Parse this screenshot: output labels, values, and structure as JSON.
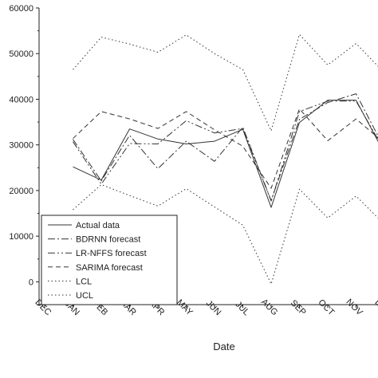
{
  "chart_data": {
    "type": "line",
    "title": "",
    "xlabel": "Date",
    "ylabel": "",
    "categories": [
      "DEC",
      "JAN",
      "FEB",
      "MAR",
      "APR",
      "MAY",
      "JUN",
      "JUL",
      "AUG",
      "SEP",
      "OCT",
      "NOV",
      "DEC"
    ],
    "ylim": [
      -5000,
      60000
    ],
    "yticks": [
      0,
      10000,
      20000,
      30000,
      40000,
      50000,
      60000
    ],
    "ytick_labels": [
      "0",
      "10000",
      "20000",
      "30000",
      "40000",
      "50000",
      "60000"
    ],
    "grid": false,
    "legend_position": "bottom-left",
    "series": [
      {
        "name": "Actual data",
        "style": "solid",
        "values": [
          null,
          25200,
          22300,
          33500,
          31300,
          30200,
          30800,
          33400,
          16300,
          34900,
          39800,
          39800,
          28200
        ]
      },
      {
        "name": "BDRNN forecast",
        "style": "dashdot",
        "values": [
          null,
          31200,
          22100,
          32100,
          24800,
          30800,
          26400,
          33900,
          17800,
          35600,
          39300,
          41200,
          29300
        ]
      },
      {
        "name": "LR-NFFS forecast",
        "style": "dashdotdot",
        "values": [
          null,
          30700,
          21400,
          30300,
          30200,
          35300,
          32600,
          33600,
          17700,
          37300,
          39600,
          39600,
          28800
        ]
      },
      {
        "name": "SARIMA forecast",
        "style": "dashed",
        "values": [
          null,
          31400,
          37300,
          35700,
          33600,
          37300,
          33300,
          29700,
          20500,
          37900,
          30900,
          35700,
          30400
        ]
      },
      {
        "name": "LCL",
        "style": "dotted",
        "values": [
          null,
          15800,
          21300,
          18900,
          16600,
          20400,
          16400,
          12400,
          -500,
          20300,
          14000,
          18800,
          12600
        ]
      },
      {
        "name": "UCL",
        "style": "dotted",
        "values": [
          null,
          46500,
          53600,
          52100,
          50300,
          54100,
          50000,
          46500,
          33100,
          54200,
          47500,
          52200,
          45800
        ]
      }
    ]
  }
}
